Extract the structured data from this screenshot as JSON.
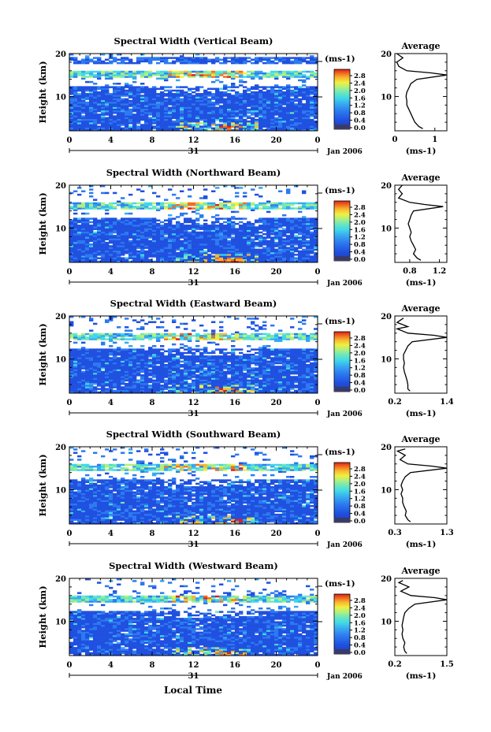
{
  "chart_data": [
    {
      "type": "heatmap",
      "title": "Spectral Width (Vertical Beam)",
      "ylabel": "Height (km)",
      "x_ticks": [
        "0",
        "4",
        "8",
        "12",
        "16",
        "20",
        "0"
      ],
      "y_ticks": [
        "20",
        "10"
      ],
      "date_day": "31",
      "date_label": "Jan 2006",
      "ylim": [
        2,
        20
      ],
      "xlim": [
        0,
        24
      ],
      "colorbar": {
        "unit": "(ms-1)",
        "ticks": [
          "2.8",
          "2.4",
          "2.0",
          "1.6",
          "1.2",
          "0.8",
          "0.4",
          "0.0"
        ]
      },
      "average": {
        "title": "Average",
        "xlabel": "(ms-1)",
        "x_ticks": [
          "0",
          "1"
        ],
        "y_ticks": [
          "20",
          "10"
        ],
        "xlim": [
          0,
          1.3
        ],
        "profile": [
          [
            0.7,
            2.5
          ],
          [
            0.6,
            3
          ],
          [
            0.55,
            3.5
          ],
          [
            0.5,
            4
          ],
          [
            0.45,
            5
          ],
          [
            0.4,
            6
          ],
          [
            0.35,
            7
          ],
          [
            0.3,
            8
          ],
          [
            0.3,
            9
          ],
          [
            0.28,
            10
          ],
          [
            0.3,
            11
          ],
          [
            0.35,
            12
          ],
          [
            0.4,
            13
          ],
          [
            0.55,
            14
          ],
          [
            1.3,
            15
          ],
          [
            0.9,
            15.5
          ],
          [
            0.3,
            16
          ],
          [
            0.1,
            17
          ],
          [
            0.05,
            18
          ],
          [
            0.2,
            19
          ],
          [
            0.05,
            20
          ]
        ]
      }
    },
    {
      "type": "heatmap",
      "title": "Spectral Width (Northward Beam)",
      "ylabel": "Height (km)",
      "x_ticks": [
        "0",
        "4",
        "8",
        "12",
        "16",
        "20",
        "0"
      ],
      "y_ticks": [
        "20",
        "10"
      ],
      "date_day": "31",
      "date_label": "Jan 2006",
      "ylim": [
        2,
        20
      ],
      "xlim": [
        0,
        24
      ],
      "colorbar": {
        "unit": "(ms-1)",
        "ticks": [
          "2.8",
          "2.4",
          "2.0",
          "1.6",
          "1.2",
          "0.8",
          "0.4",
          "0.0"
        ]
      },
      "average": {
        "title": "Average",
        "xlabel": "(ms-1)",
        "x_ticks": [
          "0.8",
          "1.2"
        ],
        "y_ticks": [
          "20",
          "10"
        ],
        "xlim": [
          0.6,
          1.3
        ],
        "profile": [
          [
            0.95,
            2.5
          ],
          [
            0.9,
            3
          ],
          [
            0.85,
            4
          ],
          [
            0.88,
            5
          ],
          [
            0.85,
            6
          ],
          [
            0.82,
            7
          ],
          [
            0.8,
            8
          ],
          [
            0.82,
            9
          ],
          [
            0.8,
            10
          ],
          [
            0.78,
            11
          ],
          [
            0.8,
            12
          ],
          [
            0.82,
            13
          ],
          [
            0.85,
            14
          ],
          [
            1.25,
            15
          ],
          [
            1.0,
            15.5
          ],
          [
            0.8,
            16
          ],
          [
            0.65,
            17
          ],
          [
            0.7,
            18
          ],
          [
            0.65,
            19
          ],
          [
            0.7,
            20
          ]
        ]
      }
    },
    {
      "type": "heatmap",
      "title": "Spectral Width (Eastward Beam)",
      "ylabel": "Height (km)",
      "x_ticks": [
        "0",
        "4",
        "8",
        "12",
        "16",
        "20",
        "0"
      ],
      "y_ticks": [
        "20",
        "10"
      ],
      "date_day": "31",
      "date_label": "Jan 2006",
      "ylim": [
        2,
        20
      ],
      "xlim": [
        0,
        24
      ],
      "colorbar": {
        "unit": "(ms-1)",
        "ticks": [
          "2.8",
          "2.4",
          "2.0",
          "1.6",
          "1.2",
          "0.8",
          "0.4",
          "0.0"
        ]
      },
      "average": {
        "title": "Average",
        "xlabel": "(ms-1)",
        "x_ticks": [
          "0.2",
          "1.4"
        ],
        "y_ticks": [
          "20",
          "10"
        ],
        "xlim": [
          0.2,
          1.4
        ],
        "profile": [
          [
            0.55,
            2.5
          ],
          [
            0.5,
            3
          ],
          [
            0.5,
            4
          ],
          [
            0.48,
            5
          ],
          [
            0.45,
            6
          ],
          [
            0.42,
            7
          ],
          [
            0.4,
            8
          ],
          [
            0.42,
            9
          ],
          [
            0.4,
            10
          ],
          [
            0.4,
            11
          ],
          [
            0.45,
            12
          ],
          [
            0.5,
            13
          ],
          [
            0.6,
            14
          ],
          [
            1.4,
            15
          ],
          [
            1.1,
            15.5
          ],
          [
            0.5,
            16
          ],
          [
            0.25,
            17
          ],
          [
            0.5,
            17.5
          ],
          [
            0.25,
            18.5
          ],
          [
            0.4,
            19.5
          ]
        ]
      }
    },
    {
      "type": "heatmap",
      "title": "Spectral Width (Southward Beam)",
      "ylabel": "Height (km)",
      "x_ticks": [
        "0",
        "4",
        "8",
        "12",
        "16",
        "20",
        "0"
      ],
      "y_ticks": [
        "20",
        "10"
      ],
      "date_day": "31",
      "date_label": "Jan 2006",
      "ylim": [
        2,
        20
      ],
      "xlim": [
        0,
        24
      ],
      "colorbar": {
        "unit": "(ms-1)",
        "ticks": [
          "2.8",
          "2.4",
          "2.0",
          "1.6",
          "1.2",
          "0.8",
          "0.4",
          "0.0"
        ]
      },
      "average": {
        "title": "Average",
        "xlabel": "(ms-1)",
        "x_ticks": [
          "0.3",
          "1.3"
        ],
        "y_ticks": [
          "20",
          "10"
        ],
        "xlim": [
          0.3,
          1.3
        ],
        "profile": [
          [
            0.6,
            2.5
          ],
          [
            0.55,
            3
          ],
          [
            0.5,
            4
          ],
          [
            0.52,
            5
          ],
          [
            0.48,
            6
          ],
          [
            0.45,
            7
          ],
          [
            0.45,
            8
          ],
          [
            0.42,
            9
          ],
          [
            0.45,
            10
          ],
          [
            0.42,
            11
          ],
          [
            0.45,
            12
          ],
          [
            0.5,
            13
          ],
          [
            0.6,
            14
          ],
          [
            1.3,
            15
          ],
          [
            1.0,
            15.5
          ],
          [
            0.55,
            16
          ],
          [
            0.4,
            17
          ],
          [
            0.5,
            18
          ],
          [
            0.35,
            19
          ],
          [
            0.5,
            19.5
          ]
        ]
      }
    },
    {
      "type": "heatmap",
      "title": "Spectral Width (Westward Beam)",
      "ylabel": "Height (km)",
      "x_ticks": [
        "0",
        "4",
        "8",
        "12",
        "16",
        "20",
        "0"
      ],
      "y_ticks": [
        "20",
        "10"
      ],
      "date_day": "31",
      "date_label": "Jan 2006",
      "ylim": [
        2,
        20
      ],
      "xlim": [
        0,
        24
      ],
      "colorbar": {
        "unit": "(ms-1)",
        "ticks": [
          "2.8",
          "2.4",
          "2.0",
          "1.6",
          "1.2",
          "0.8",
          "0.4",
          "0.0"
        ]
      },
      "average": {
        "title": "Average",
        "xlabel": "(ms-1)",
        "x_ticks": [
          "0.2",
          "1.5"
        ],
        "y_ticks": [
          "20",
          "10"
        ],
        "xlim": [
          0.2,
          1.5
        ],
        "profile": [
          [
            0.5,
            2.5
          ],
          [
            0.45,
            3
          ],
          [
            0.42,
            4
          ],
          [
            0.45,
            5
          ],
          [
            0.4,
            6
          ],
          [
            0.38,
            7
          ],
          [
            0.4,
            8
          ],
          [
            0.38,
            9
          ],
          [
            0.4,
            10
          ],
          [
            0.42,
            11
          ],
          [
            0.45,
            12
          ],
          [
            0.55,
            13
          ],
          [
            0.7,
            14
          ],
          [
            1.5,
            15
          ],
          [
            1.2,
            15.5
          ],
          [
            0.6,
            16
          ],
          [
            0.35,
            17
          ],
          [
            0.55,
            18
          ],
          [
            0.3,
            19
          ],
          [
            0.4,
            19.5
          ]
        ]
      }
    }
  ],
  "xlabel_bottom": "Local Time",
  "colors": {
    "scale": [
      "#1e3cb4",
      "#2050e0",
      "#2c7af0",
      "#38a8f0",
      "#40d8e8",
      "#70e8b8",
      "#b0f080",
      "#f0f040",
      "#f8b830",
      "#f07020",
      "#e02018"
    ]
  }
}
